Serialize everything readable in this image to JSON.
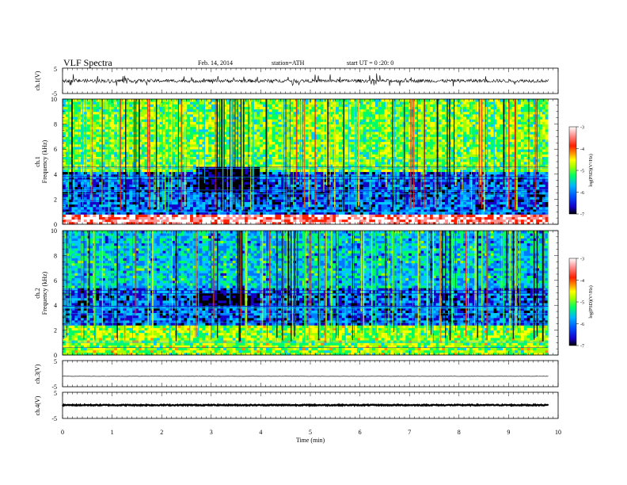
{
  "header": {
    "title": "VLF Spectra",
    "date": "Feb. 14, 2014",
    "station": "station=ATH",
    "start_ut": "start UT =  0 :20: 0"
  },
  "chart_data": [
    {
      "type": "line",
      "panel": "ch1-waveform",
      "ylabel": "ch.1(V)",
      "ylim": [
        -5,
        5
      ],
      "yticks": [
        "5",
        "-5"
      ],
      "series": [
        {
          "x_range_min": [
            0,
            9.8
          ],
          "level_V": 0.0,
          "amplitude_V": 1.3,
          "spikes": "frequent impulsive bursts"
        }
      ]
    },
    {
      "type": "heatmap",
      "panel": "ch1-spectrogram",
      "ylabel": [
        "ch.1",
        "Frequency (kHz)"
      ],
      "ylim": [
        0,
        10
      ],
      "yticks": [
        "0",
        "2",
        "4",
        "6",
        "8",
        "10"
      ],
      "x_range_min": [
        0,
        9.8
      ],
      "colorbar": {
        "label": "log(PSD)(V²/Hz)",
        "range": [
          -7,
          -3
        ],
        "ticks": [
          "-3",
          "-4",
          "-5",
          "-6",
          "-7"
        ],
        "colors": [
          "#000000",
          "#1600c8",
          "#0078ff",
          "#00c8ff",
          "#00ff64",
          "#a0ff00",
          "#ffff00",
          "#ff8c00",
          "#ff2000",
          "#ff9090",
          "#ffffff"
        ]
      },
      "features": [
        {
          "band_kHz": [
            0,
            0.8
          ],
          "logPSD": -3.3,
          "note": "strong low-frequency band"
        },
        {
          "band_kHz": [
            0.8,
            4.3
          ],
          "logPSD": -6.3,
          "note": "quiet band with narrowband lines"
        },
        {
          "band_kHz": [
            4.3,
            10
          ],
          "logPSD": -5.1,
          "note": "broadband sferics, vertical impulses"
        },
        {
          "time_min": [
            2.7,
            4.0
          ],
          "band_kHz": [
            2.6,
            4.6
          ],
          "logPSD": -7.0,
          "note": "dark interval"
        }
      ]
    },
    {
      "type": "heatmap",
      "panel": "ch2-spectrogram",
      "ylabel": [
        "ch.2",
        "Frequency (kHz)"
      ],
      "ylim": [
        0,
        10
      ],
      "yticks": [
        "0",
        "2",
        "4",
        "6",
        "8",
        "10"
      ],
      "x_range_min": [
        0,
        9.8
      ],
      "colorbar": {
        "label": "log(PSD)(V²/Hz)",
        "range": [
          -7,
          -3
        ],
        "ticks": [
          "-3",
          "-4",
          "-5",
          "-6",
          "-7"
        ],
        "colors": [
          "#000000",
          "#1600c8",
          "#0078ff",
          "#00c8ff",
          "#00ff64",
          "#a0ff00",
          "#ffff00",
          "#ff8c00",
          "#ff2000",
          "#ff9090",
          "#ffffff"
        ]
      },
      "features": [
        {
          "band_kHz": [
            0,
            2.4
          ],
          "logPSD": -5.0,
          "note": "green/yellow low band"
        },
        {
          "band_kHz": [
            2.4,
            5.5
          ],
          "logPSD": -6.3,
          "note": "blue band with lines"
        },
        {
          "band_kHz": [
            5.5,
            10
          ],
          "logPSD": -5.8,
          "note": "sferics"
        },
        {
          "time_min": [
            2.7,
            4.0
          ],
          "band_kHz": [
            4.1,
            5.0
          ],
          "logPSD": -7.0,
          "note": "dark interval"
        }
      ]
    },
    {
      "type": "line",
      "panel": "ch3-waveform",
      "ylabel": "ch.3(V)",
      "ylim": [
        -5,
        5
      ],
      "yticks": [
        "5",
        "-5"
      ],
      "series": [
        {
          "x_range_min": [
            0,
            9.8
          ],
          "level_V": -1.0,
          "amplitude_V": 0.1
        }
      ]
    },
    {
      "type": "line",
      "panel": "ch4-waveform",
      "ylabel": "ch.4(V)",
      "ylim": [
        -5,
        5
      ],
      "yticks": [
        "5",
        "-5"
      ],
      "series": [
        {
          "x_range_min": [
            0,
            9.8
          ],
          "level_V": 0.1,
          "amplitude_V": 0.4
        }
      ]
    }
  ],
  "xaxis": {
    "label": "Time (min)",
    "range": [
      0,
      10
    ],
    "ticks": [
      "0",
      "1",
      "2",
      "3",
      "4",
      "5",
      "6",
      "7",
      "8",
      "9",
      "10"
    ]
  }
}
